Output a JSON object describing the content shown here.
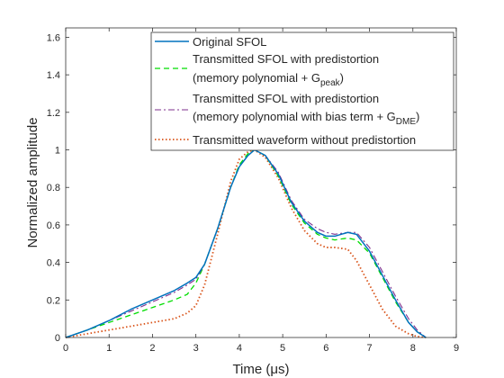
{
  "chart_data": {
    "type": "line",
    "title": "",
    "xlabel": "Time (μs)",
    "ylabel": "Normalized amplitude",
    "xlim": [
      0,
      9
    ],
    "ylim": [
      0,
      1.65
    ],
    "xticks": [
      0,
      1,
      2,
      3,
      4,
      5,
      6,
      7,
      8,
      9
    ],
    "yticks": [
      0,
      0.2,
      0.4,
      0.6,
      0.8,
      1,
      1.2,
      1.4,
      1.6
    ],
    "xtick_labels": [
      "0",
      "1",
      "2",
      "3",
      "4",
      "5",
      "6",
      "7",
      "8",
      "9"
    ],
    "ytick_labels": [
      "0",
      "0.2",
      "0.4",
      "0.6",
      "0.8",
      "1",
      "1.2",
      "1.4",
      "1.6"
    ],
    "grid": false,
    "legend_position": "top-right",
    "series": [
      {
        "name": "Original SFOL",
        "color": "#0072BD",
        "dash": "solid",
        "x": [
          0,
          0.5,
          1,
          1.5,
          2,
          2.5,
          2.8,
          3,
          3.2,
          3.5,
          3.8,
          4.0,
          4.2,
          4.35,
          4.6,
          4.9,
          5.2,
          5.5,
          5.8,
          6.0,
          6.2,
          6.5,
          6.7,
          7.0,
          7.3,
          7.6,
          7.9,
          8.1,
          8.3
        ],
        "y": [
          0,
          0.04,
          0.09,
          0.15,
          0.2,
          0.25,
          0.29,
          0.32,
          0.39,
          0.58,
          0.8,
          0.91,
          0.97,
          1.0,
          0.97,
          0.87,
          0.72,
          0.62,
          0.56,
          0.54,
          0.54,
          0.56,
          0.55,
          0.46,
          0.33,
          0.2,
          0.08,
          0.03,
          0
        ]
      },
      {
        "name": "Transmitted SFOL with predistortion (memory polynomial + G_peak)",
        "color": "#00DD00",
        "dash": "dashed",
        "x": [
          0,
          0.5,
          1,
          1.5,
          2,
          2.5,
          2.8,
          3.0,
          3.2,
          3.5,
          3.8,
          4.0,
          4.2,
          4.35,
          4.6,
          4.9,
          5.2,
          5.5,
          5.8,
          6.0,
          6.2,
          6.5,
          6.7,
          7.0,
          7.3,
          7.6,
          7.9,
          8.1,
          8.3
        ],
        "y": [
          0,
          0.04,
          0.08,
          0.12,
          0.16,
          0.2,
          0.23,
          0.29,
          0.39,
          0.58,
          0.8,
          0.92,
          0.98,
          1.0,
          0.97,
          0.86,
          0.71,
          0.61,
          0.55,
          0.53,
          0.52,
          0.53,
          0.52,
          0.45,
          0.32,
          0.19,
          0.08,
          0.03,
          0
        ]
      },
      {
        "name": "Transmitted SFOL with predistortion (memory polynomial with bias term + G_DME)",
        "color": "#7E2F8E",
        "dash": "dashdot",
        "x": [
          0,
          0.5,
          1,
          1.5,
          2,
          2.5,
          2.8,
          3.0,
          3.2,
          3.5,
          3.8,
          4.0,
          4.2,
          4.35,
          4.6,
          4.9,
          5.2,
          5.5,
          5.8,
          6.0,
          6.2,
          6.5,
          6.7,
          7.0,
          7.3,
          7.6,
          7.9,
          8.1,
          8.3
        ],
        "y": [
          0,
          0.04,
          0.09,
          0.14,
          0.19,
          0.24,
          0.28,
          0.31,
          0.39,
          0.58,
          0.8,
          0.91,
          0.97,
          1.0,
          0.97,
          0.88,
          0.73,
          0.63,
          0.58,
          0.56,
          0.55,
          0.56,
          0.56,
          0.48,
          0.35,
          0.22,
          0.1,
          0.04,
          0
        ]
      },
      {
        "name": "Transmitted waveform without predistortion",
        "color": "#D95319",
        "dash": "dotted",
        "x": [
          0,
          0.5,
          1,
          1.5,
          2,
          2.5,
          2.8,
          3.0,
          3.2,
          3.5,
          3.8,
          4.0,
          4.2,
          4.35,
          4.6,
          4.9,
          5.2,
          5.5,
          5.8,
          6.0,
          6.2,
          6.5,
          6.7,
          7.0,
          7.3,
          7.6,
          7.9,
          8.1,
          8.3
        ],
        "y": [
          0,
          0.02,
          0.04,
          0.06,
          0.08,
          0.1,
          0.13,
          0.17,
          0.28,
          0.55,
          0.83,
          0.95,
          0.99,
          1.0,
          0.96,
          0.85,
          0.69,
          0.57,
          0.5,
          0.48,
          0.48,
          0.47,
          0.41,
          0.28,
          0.15,
          0.06,
          0.02,
          0.005,
          0
        ]
      }
    ],
    "legend": [
      {
        "line1": "Original SFOL",
        "line2": "",
        "sub": "",
        "tail": ""
      },
      {
        "line1": "Transmitted SFOL with predistortion",
        "line2": "(memory polynomial + G",
        "sub": "peak",
        "tail": ")"
      },
      {
        "line1": "Transmitted SFOL with predistortion",
        "line2": "(memory polynomial with bias term + G",
        "sub": "DME",
        "tail": ")"
      },
      {
        "line1": "Transmitted waveform without predistortion",
        "line2": "",
        "sub": "",
        "tail": ""
      }
    ]
  }
}
